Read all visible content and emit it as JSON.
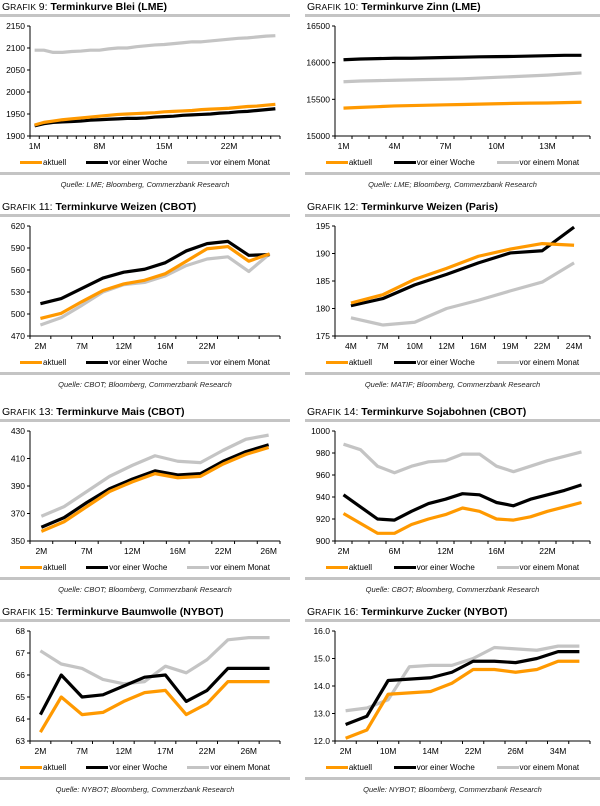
{
  "series_names": [
    "aktuell",
    "vor einer Woche",
    "vor einem Monat"
  ],
  "series_colors": [
    "#ff9900",
    "#000000",
    "#c4c4c4"
  ],
  "chart_data": [
    {
      "id": "g9",
      "type": "line",
      "label_prefix": "Grafik",
      "number": "9:",
      "title": "Terminkurve Blei (LME)",
      "source": "Quelle: LME; Bloomberg, Commerzbank Research",
      "ylim": [
        1900,
        2150
      ],
      "yticks": [
        "1900",
        "1950",
        "2000",
        "2050",
        "2100",
        "2150"
      ],
      "xtick_count": 4,
      "xticklabels": [
        "1M",
        "8M",
        "15M",
        "22M"
      ],
      "x_label_positions": [
        0,
        7,
        14,
        21
      ],
      "n": 27,
      "xlabel": "",
      "ylabel": "",
      "series": [
        {
          "name": "aktuell",
          "values": [
            1925,
            1931,
            1934,
            1937,
            1939,
            1941,
            1943,
            1945,
            1947,
            1949,
            1950,
            1951,
            1952,
            1953,
            1955,
            1956,
            1957,
            1958,
            1960,
            1961,
            1962,
            1963,
            1965,
            1967,
            1968,
            1970,
            1972
          ]
        },
        {
          "name": "vor einer Woche",
          "values": [
            1923,
            1928,
            1931,
            1932,
            1933,
            1934,
            1936,
            1937,
            1938,
            1939,
            1940,
            1940,
            1941,
            1943,
            1944,
            1945,
            1947,
            1948,
            1949,
            1950,
            1952,
            1953,
            1955,
            1956,
            1958,
            1960,
            1962
          ]
        },
        {
          "name": "vor einem Monat",
          "values": [
            2095,
            2095,
            2090,
            2090,
            2092,
            2093,
            2095,
            2095,
            2098,
            2100,
            2100,
            2103,
            2105,
            2107,
            2108,
            2110,
            2112,
            2114,
            2114,
            2116,
            2118,
            2120,
            2122,
            2123,
            2125,
            2127,
            2128
          ]
        }
      ]
    },
    {
      "id": "g10",
      "type": "line",
      "label_prefix": "Grafik",
      "number": "10:",
      "title": "Terminkurve Zinn (LME)",
      "source": "Quelle: LME; Bloomberg, Commerzbank Research",
      "ylim": [
        15000,
        16500
      ],
      "yticks": [
        "15000",
        "15500",
        "16000",
        "16500"
      ],
      "xticklabels": [
        "1M",
        "4M",
        "7M",
        "10M",
        "13M"
      ],
      "x_label_positions": [
        0,
        3,
        6,
        9,
        12
      ],
      "n": 15,
      "xlabel": "",
      "ylabel": "",
      "series": [
        {
          "name": "aktuell",
          "values": [
            15380,
            15390,
            15400,
            15410,
            15415,
            15420,
            15425,
            15430,
            15435,
            15440,
            15445,
            15448,
            15450,
            15455,
            15460
          ]
        },
        {
          "name": "vor einer Woche",
          "values": [
            16040,
            16050,
            16055,
            16060,
            16060,
            16065,
            16070,
            16075,
            16080,
            16082,
            16085,
            16090,
            16095,
            16100,
            16100
          ]
        },
        {
          "name": "vor einem Monat",
          "values": [
            15740,
            15750,
            15755,
            15760,
            15765,
            15770,
            15775,
            15780,
            15790,
            15800,
            15810,
            15820,
            15830,
            15845,
            15860
          ]
        }
      ]
    },
    {
      "id": "g11",
      "type": "line",
      "label_prefix": "Grafik",
      "number": "11:",
      "title": "Terminkurve Weizen (CBOT)",
      "source": "Quelle: CBOT; Bloomberg, Commerzbank Research",
      "ylim": [
        470,
        620
      ],
      "yticks": [
        "470",
        "500",
        "530",
        "560",
        "590",
        "620"
      ],
      "xticklabels": [
        "2M",
        "7M",
        "12M",
        "16M",
        "22M"
      ],
      "x_label_positions": [
        0,
        2,
        4,
        6,
        8
      ],
      "n": 12,
      "xlabel": "",
      "ylabel": "",
      "series": [
        {
          "name": "aktuell",
          "values": [
            494,
            501,
            517,
            532,
            541,
            546,
            555,
            572,
            589,
            592,
            572,
            582
          ]
        },
        {
          "name": "vor einer Woche",
          "values": [
            514,
            521,
            535,
            549,
            557,
            561,
            570,
            586,
            596,
            599,
            580,
            581
          ]
        },
        {
          "name": "vor einem Monat",
          "values": [
            485,
            495,
            512,
            530,
            540,
            543,
            552,
            566,
            575,
            578,
            558,
            582
          ]
        }
      ]
    },
    {
      "id": "g12",
      "type": "line",
      "label_prefix": "Grafik",
      "number": "12:",
      "title": "Terminkurve Weizen (Paris)",
      "source": "Quelle: MATIF; Bloomberg, Commerzbank Research",
      "ylim": [
        175,
        195
      ],
      "yticks": [
        "175",
        "180",
        "185",
        "190",
        "195"
      ],
      "xticklabels": [
        "4M",
        "7M",
        "10M",
        "12M",
        "16M",
        "19M",
        "22M",
        "24M"
      ],
      "x_label_positions": [
        0,
        1,
        2,
        3,
        4,
        5,
        6,
        7
      ],
      "n": 8,
      "xlabel": "",
      "ylabel": "",
      "series": [
        {
          "name": "aktuell",
          "values": [
            181.0,
            182.5,
            185.3,
            187.3,
            189.5,
            190.8,
            191.8,
            191.5
          ]
        },
        {
          "name": "vor einer Woche",
          "values": [
            180.5,
            181.8,
            184.3,
            186.2,
            188.3,
            190.1,
            190.5,
            194.8
          ]
        },
        {
          "name": "vor einem Monat",
          "values": [
            178.3,
            177.0,
            177.5,
            180.0,
            181.5,
            183.2,
            184.8,
            188.3
          ]
        }
      ]
    },
    {
      "id": "g13",
      "type": "line",
      "label_prefix": "Grafik",
      "number": "13:",
      "title": "Terminkurve Mais (CBOT)",
      "source": "Quelle: CBOT; Bloomberg, Commerzbank Research",
      "ylim": [
        350,
        430
      ],
      "yticks": [
        "350",
        "370",
        "390",
        "410",
        "430"
      ],
      "xticklabels": [
        "2M",
        "7M",
        "12M",
        "16M",
        "22M",
        "26M"
      ],
      "x_label_positions": [
        0,
        2,
        4,
        6,
        8,
        10
      ],
      "n": 11,
      "xlabel": "",
      "ylabel": "",
      "series": [
        {
          "name": "aktuell",
          "values": [
            357,
            364,
            375,
            386,
            393,
            399,
            396,
            397,
            406,
            413,
            418
          ]
        },
        {
          "name": "vor einer Woche",
          "values": [
            360,
            367,
            378,
            388,
            395,
            401,
            398,
            399,
            408,
            415,
            420
          ]
        },
        {
          "name": "vor einem Monat",
          "values": [
            368,
            375,
            386,
            397,
            405,
            412,
            408,
            407,
            416,
            424,
            427
          ]
        }
      ]
    },
    {
      "id": "g14",
      "type": "line",
      "label_prefix": "Grafik",
      "number": "14:",
      "title": "Terminkurve Sojabohnen (CBOT)",
      "source": "Quelle: CBOT; Bloomberg, Commerzbank Research",
      "ylim": [
        900,
        1000
      ],
      "yticks": [
        "900",
        "920",
        "940",
        "960",
        "980",
        "1000"
      ],
      "xticklabels": [
        "2M",
        "6M",
        "12M",
        "16M",
        "22M"
      ],
      "x_label_positions": [
        0,
        3,
        6,
        9,
        12
      ],
      "n": 15,
      "xlabel": "",
      "ylabel": "",
      "series": [
        {
          "name": "aktuell",
          "values": [
            925,
            916,
            907,
            907,
            915,
            920,
            924,
            930,
            927,
            920,
            919,
            922,
            927,
            931,
            935
          ]
        },
        {
          "name": "vor einer Woche",
          "values": [
            942,
            931,
            920,
            919,
            927,
            934,
            938,
            943,
            942,
            935,
            932,
            938,
            942,
            946,
            951
          ]
        },
        {
          "name": "vor einem Monat",
          "values": [
            988,
            983,
            968,
            962,
            968,
            972,
            973,
            979,
            979,
            968,
            963,
            968,
            973,
            977,
            981
          ]
        }
      ]
    },
    {
      "id": "g15",
      "type": "line",
      "label_prefix": "Grafik",
      "number": "15:",
      "title": "Terminkurve Baumwolle (NYBOT)",
      "source": "Quelle: NYBOT; Bloomberg, Commerzbank Research",
      "ylim": [
        63,
        68
      ],
      "yticks": [
        "63",
        "64",
        "65",
        "66",
        "67",
        "68"
      ],
      "xticklabels": [
        "2M",
        "7M",
        "12M",
        "17M",
        "22M",
        "26M"
      ],
      "x_label_positions": [
        0,
        2,
        4,
        6,
        8,
        10
      ],
      "n": 12,
      "xlabel": "",
      "ylabel": "",
      "series": [
        {
          "name": "aktuell",
          "values": [
            63.4,
            65.0,
            64.2,
            64.3,
            64.8,
            65.2,
            65.3,
            64.2,
            64.7,
            65.7,
            65.7,
            65.7
          ]
        },
        {
          "name": "vor einer Woche",
          "values": [
            64.2,
            66.0,
            65.0,
            65.1,
            65.5,
            65.9,
            66.0,
            64.8,
            65.3,
            66.3,
            66.3,
            66.3
          ]
        },
        {
          "name": "vor einem Monat",
          "values": [
            67.1,
            66.5,
            66.3,
            65.8,
            65.6,
            65.7,
            66.4,
            66.1,
            66.7,
            67.6,
            67.7,
            67.7
          ]
        }
      ]
    },
    {
      "id": "g16",
      "type": "line",
      "label_prefix": "Grafik",
      "number": "16:",
      "title": "Terminkurve Zucker (NYBOT)",
      "source": "Quelle: NYBOT; Bloomberg, Commerzbank Research",
      "ylim": [
        12.0,
        16.0
      ],
      "yticks": [
        "12.0",
        "13.0",
        "14.0",
        "15.0",
        "16.0"
      ],
      "xticklabels": [
        "2M",
        "10M",
        "14M",
        "22M",
        "26M",
        "34M"
      ],
      "x_label_positions": [
        0,
        2,
        4,
        6,
        8,
        10
      ],
      "n": 12,
      "xlabel": "",
      "ylabel": "",
      "series": [
        {
          "name": "aktuell",
          "values": [
            12.1,
            12.4,
            13.7,
            13.75,
            13.8,
            14.1,
            14.6,
            14.6,
            14.5,
            14.6,
            14.9,
            14.9
          ]
        },
        {
          "name": "vor einer Woche",
          "values": [
            12.6,
            12.9,
            14.2,
            14.25,
            14.3,
            14.5,
            14.9,
            14.9,
            14.85,
            15.0,
            15.25,
            15.25
          ]
        },
        {
          "name": "vor einem Monat",
          "values": [
            13.1,
            13.2,
            13.5,
            14.7,
            14.75,
            14.75,
            15.0,
            15.4,
            15.35,
            15.3,
            15.45,
            15.45
          ]
        }
      ]
    }
  ]
}
